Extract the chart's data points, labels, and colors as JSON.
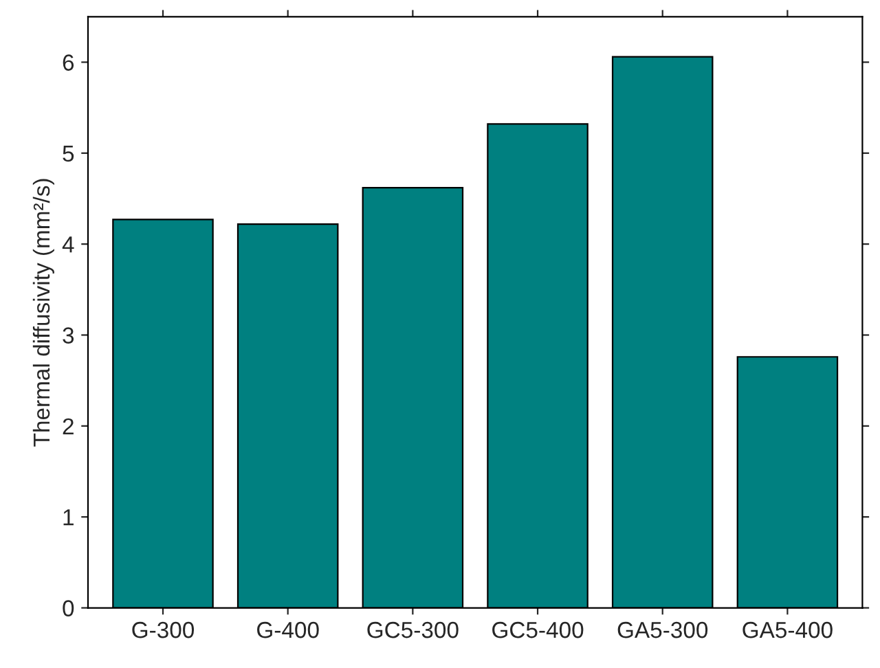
{
  "chart_data": {
    "type": "bar",
    "ylabel": "Thermal diffusivity (mm²/s)",
    "categories": [
      "G-300",
      "G-400",
      "GC5-300",
      "GC5-400",
      "GA5-300",
      "GA5-400"
    ],
    "values": [
      4.27,
      4.22,
      4.62,
      5.32,
      6.06,
      2.76
    ],
    "color": "#008080",
    "ylim": [
      0,
      6.5
    ],
    "yticks": [
      0,
      1,
      2,
      3,
      4,
      5,
      6
    ],
    "grid": false
  }
}
